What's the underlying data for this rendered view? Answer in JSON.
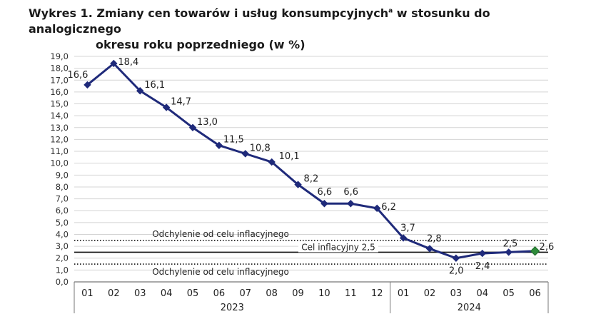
{
  "title": {
    "prefix": "Wykres 1. Zmiany cen towarów i usług konsumpcyjnych",
    "superscript": "a",
    "suffix": " w stosunku do analogicznego",
    "line2": "okresu roku poprzedniego (w %)"
  },
  "chart_data": {
    "type": "line",
    "title": "Wykres 1. Zmiany cen towarów i usług konsumpcyjnych w stosunku do analogicznego okresu roku poprzedniego (w %)",
    "categories": [
      "01",
      "02",
      "03",
      "04",
      "05",
      "06",
      "07",
      "08",
      "09",
      "10",
      "11",
      "12",
      "01",
      "02",
      "03",
      "04",
      "05",
      "06"
    ],
    "year_groups": [
      {
        "label": "2023",
        "start": 0,
        "end": 11
      },
      {
        "label": "2024",
        "start": 12,
        "end": 17
      }
    ],
    "series": [
      {
        "values": [
          16.6,
          18.4,
          16.1,
          14.7,
          13.0,
          11.5,
          10.8,
          10.1,
          8.2,
          6.6,
          6.6,
          6.2,
          3.7,
          2.8,
          2.0,
          2.4,
          2.5,
          2.6
        ],
        "labels": [
          "16,6",
          "18,4",
          "16,1",
          "14,7",
          "13,0",
          "11,5",
          "10,8",
          "10,1",
          "8,2",
          "6,6",
          "6,6",
          "6,2",
          "3,7",
          "2,8",
          "2,0",
          "2,4",
          "2,5",
          "2,6"
        ],
        "color": "#1f2a7a",
        "last_marker_color": "#2e8b3a"
      }
    ],
    "ylim": [
      0,
      19
    ],
    "ytick_step": 1,
    "ytick_labels": [
      "0,0",
      "1,0",
      "2,0",
      "3,0",
      "4,0",
      "5,0",
      "6,0",
      "7,0",
      "8,0",
      "9,0",
      "10,0",
      "11,0",
      "12,0",
      "13,0",
      "14,0",
      "15,0",
      "16,0",
      "17,0",
      "18,0",
      "19,0"
    ],
    "reference_lines": [
      {
        "value": 3.5,
        "style": "dotted",
        "label": "Odchylenie od celu inflacyjnego"
      },
      {
        "value": 2.5,
        "style": "solid",
        "label": "Cel inflacyjny 2,5"
      },
      {
        "value": 1.5,
        "style": "dotted",
        "label": "Odchylenie od celu inflacyjnego"
      }
    ],
    "grid": true,
    "xlabel": "",
    "ylabel": ""
  }
}
